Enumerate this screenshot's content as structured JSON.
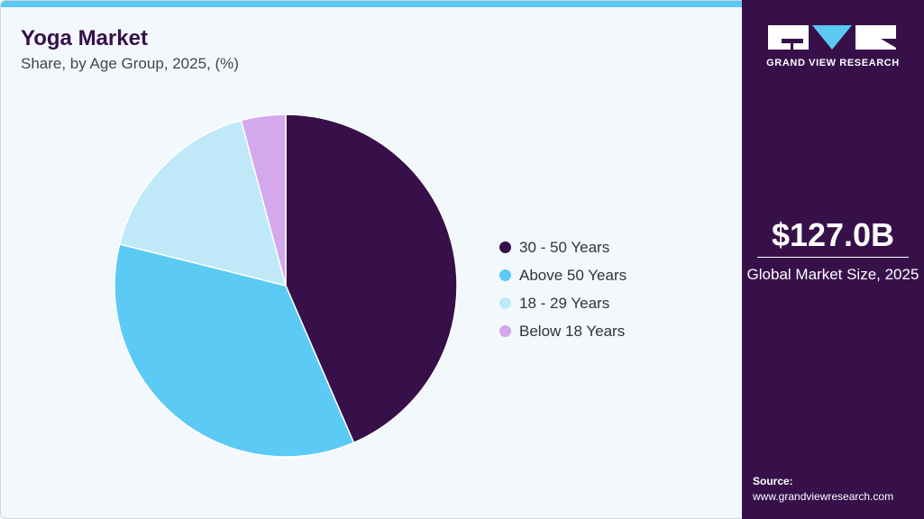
{
  "header": {
    "title": "Yoga Market",
    "subtitle": "Share, by Age Group, 2025, (%)"
  },
  "chart_data": {
    "type": "pie",
    "title": "Yoga Market",
    "subtitle": "Share, by Age Group, 2025, (%)",
    "categories": [
      "30 - 50 Years",
      "Above 50 Years",
      "18 - 29 Years",
      "Below 18 Years"
    ],
    "values": [
      43.5,
      35.4,
      16.9,
      4.2
    ],
    "colors": [
      "#37104a",
      "#5bcaf5",
      "#bfe9f9",
      "#d4a8ec"
    ],
    "start_angle": "top, clockwise",
    "legend": "right"
  },
  "sidebar": {
    "logo_text": "GRAND VIEW RESEARCH",
    "market_value": "$127.0B",
    "market_label": "Global Market Size, 2025",
    "source_label": "Source:",
    "source_url": "www.grandviewresearch.com"
  }
}
